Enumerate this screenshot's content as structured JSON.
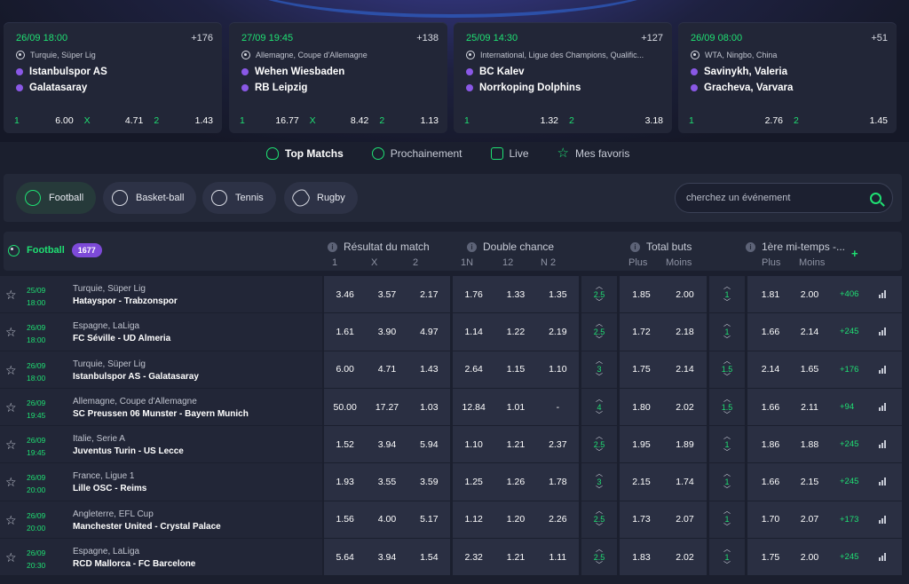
{
  "colors": {
    "accent": "#1fe073",
    "badge": "#7d4ad8",
    "bg": "#1b1f2e"
  },
  "cards": [
    {
      "date": "26/09",
      "time": "18:00",
      "count": "+176",
      "league": "Turquie, Süper Lig",
      "team1": "Istanbulspor AS",
      "team2": "Galatasaray",
      "odds": [
        {
          "label": "1",
          "value": "6.00"
        },
        {
          "label": "X",
          "value": "4.71"
        },
        {
          "label": "2",
          "value": "1.43"
        }
      ]
    },
    {
      "date": "27/09",
      "time": "19:45",
      "count": "+138",
      "league": "Allemagne, Coupe d'Allemagne",
      "team1": "Wehen Wiesbaden",
      "team2": "RB Leipzig",
      "odds": [
        {
          "label": "1",
          "value": "16.77"
        },
        {
          "label": "X",
          "value": "8.42"
        },
        {
          "label": "2",
          "value": "1.13"
        }
      ]
    },
    {
      "date": "25/09",
      "time": "14:30",
      "count": "+127",
      "league": "International, Ligue des Champions, Qualific...",
      "team1": "BC Kalev",
      "team2": "Norrkoping Dolphins",
      "odds": [
        {
          "label": "1",
          "value": "1.32"
        },
        {
          "label": "2",
          "value": "3.18"
        }
      ]
    },
    {
      "date": "26/09",
      "time": "08:00",
      "count": "+51",
      "league": "WTA, Ningbo, China",
      "team1": "Savinykh, Valeria",
      "team2": "Gracheva, Varvara",
      "odds": [
        {
          "label": "1",
          "value": "2.76"
        },
        {
          "label": "2",
          "value": "1.45"
        }
      ]
    }
  ],
  "filters": [
    {
      "label": "Top Matchs",
      "icon": "trophy-icon"
    },
    {
      "label": "Prochainement",
      "icon": "clock-icon"
    },
    {
      "label": "Live",
      "icon": "live-icon"
    },
    {
      "label": "Mes favoris",
      "icon": "star-icon"
    }
  ],
  "sports": [
    {
      "label": "Football",
      "icon": "football-icon"
    },
    {
      "label": "Basket-ball",
      "icon": "basketball-icon"
    },
    {
      "label": "Tennis",
      "icon": "tennis-icon"
    },
    {
      "label": "Rugby",
      "icon": "rugby-icon"
    }
  ],
  "search": {
    "placeholder": "cherchez un événement"
  },
  "table": {
    "sport": "Football",
    "count": "1677",
    "groups": [
      {
        "title": "Résultat du match",
        "cols": [
          "1",
          "X",
          "2"
        ]
      },
      {
        "title": "Double chance",
        "cols": [
          "1N",
          "12",
          "N 2"
        ]
      },
      {
        "title": "Total buts",
        "cols": [
          "Plus",
          "Moins"
        ]
      },
      {
        "title": "1ère mi-temps -...",
        "cols": [
          "Plus",
          "Moins"
        ]
      }
    ],
    "plus": "+"
  },
  "rows": [
    {
      "date": "25/09",
      "time": "18:00",
      "league": "Turquie, Süper Lig",
      "home": "Hatayspor",
      "away": "Trabzonspor",
      "result": [
        "3.46",
        "3.57",
        "2.17"
      ],
      "double": [
        "1.76",
        "1.33",
        "1.35"
      ],
      "line1": "2.5",
      "total": [
        "1.85",
        "2.00"
      ],
      "line2": "1",
      "half": [
        "1.81",
        "2.00"
      ],
      "count": "+406"
    },
    {
      "date": "26/09",
      "time": "18:00",
      "league": "Espagne, LaLiga",
      "home": "FC Séville",
      "away": "UD Almeria",
      "result": [
        "1.61",
        "3.90",
        "4.97"
      ],
      "double": [
        "1.14",
        "1.22",
        "2.19"
      ],
      "line1": "2.5",
      "total": [
        "1.72",
        "2.18"
      ],
      "line2": "1",
      "half": [
        "1.66",
        "2.14"
      ],
      "count": "+245"
    },
    {
      "date": "26/09",
      "time": "18:00",
      "league": "Turquie, Süper Lig",
      "home": "Istanbulspor AS",
      "away": "Galatasaray",
      "result": [
        "6.00",
        "4.71",
        "1.43"
      ],
      "double": [
        "2.64",
        "1.15",
        "1.10"
      ],
      "line1": "3",
      "total": [
        "1.75",
        "2.14"
      ],
      "line2": "1.5",
      "half": [
        "2.14",
        "1.65"
      ],
      "count": "+176"
    },
    {
      "date": "26/09",
      "time": "19:45",
      "league": "Allemagne, Coupe d'Allemagne",
      "home": "SC Preussen 06 Munster",
      "away": "Bayern Munich",
      "result": [
        "50.00",
        "17.27",
        "1.03"
      ],
      "double": [
        "12.84",
        "1.01",
        "-"
      ],
      "line1": "4",
      "total": [
        "1.80",
        "2.02"
      ],
      "line2": "1.5",
      "half": [
        "1.66",
        "2.11"
      ],
      "count": "+94"
    },
    {
      "date": "26/09",
      "time": "19:45",
      "league": "Italie, Serie A",
      "home": "Juventus Turin",
      "away": "US Lecce",
      "result": [
        "1.52",
        "3.94",
        "5.94"
      ],
      "double": [
        "1.10",
        "1.21",
        "2.37"
      ],
      "line1": "2.5",
      "total": [
        "1.95",
        "1.89"
      ],
      "line2": "1",
      "half": [
        "1.86",
        "1.88"
      ],
      "count": "+245"
    },
    {
      "date": "26/09",
      "time": "20:00",
      "league": "France, Ligue 1",
      "home": "Lille OSC",
      "away": "Reims",
      "result": [
        "1.93",
        "3.55",
        "3.59"
      ],
      "double": [
        "1.25",
        "1.26",
        "1.78"
      ],
      "line1": "3",
      "total": [
        "2.15",
        "1.74"
      ],
      "line2": "1",
      "half": [
        "1.66",
        "2.15"
      ],
      "count": "+245"
    },
    {
      "date": "26/09",
      "time": "20:00",
      "league": "Angleterre, EFL Cup",
      "home": "Manchester United",
      "away": "Crystal Palace",
      "result": [
        "1.56",
        "4.00",
        "5.17"
      ],
      "double": [
        "1.12",
        "1.20",
        "2.26"
      ],
      "line1": "2.5",
      "total": [
        "1.73",
        "2.07"
      ],
      "line2": "1",
      "half": [
        "1.70",
        "2.07"
      ],
      "count": "+173"
    },
    {
      "date": "26/09",
      "time": "20:30",
      "league": "Espagne, LaLiga",
      "home": "RCD Mallorca",
      "away": "FC Barcelone",
      "result": [
        "5.64",
        "3.94",
        "1.54"
      ],
      "double": [
        "2.32",
        "1.21",
        "1.11"
      ],
      "line1": "2.5",
      "total": [
        "1.83",
        "2.02"
      ],
      "line2": "1",
      "half": [
        "1.75",
        "2.00"
      ],
      "count": "+245"
    }
  ]
}
